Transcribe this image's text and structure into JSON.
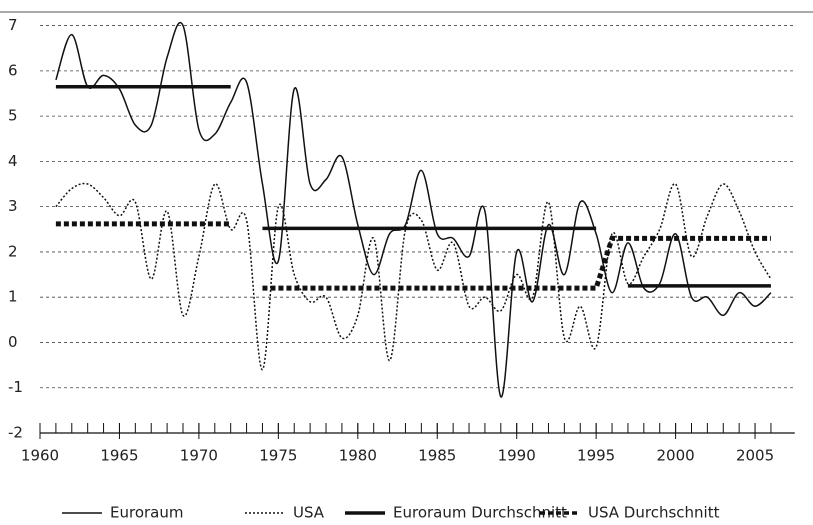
{
  "chart_data": {
    "type": "line",
    "x": [
      1961,
      1962,
      1963,
      1964,
      1965,
      1966,
      1967,
      1968,
      1969,
      1970,
      1971,
      1972,
      1973,
      1974,
      1975,
      1976,
      1977,
      1978,
      1979,
      1980,
      1981,
      1982,
      1983,
      1984,
      1985,
      1986,
      1987,
      1988,
      1989,
      1990,
      1991,
      1992,
      1993,
      1994,
      1995,
      1996,
      1997,
      1998,
      1999,
      2000,
      2001,
      2002,
      2003,
      2004,
      2005,
      2006
    ],
    "series": [
      {
        "name": "Euroraum",
        "color": "#111111",
        "style": "solid",
        "width": 1.5,
        "smooth": true,
        "values": [
          5.8,
          6.8,
          5.65,
          5.9,
          5.6,
          4.8,
          4.8,
          6.3,
          7.0,
          4.7,
          4.6,
          5.3,
          5.75,
          3.5,
          1.8,
          5.6,
          3.5,
          3.6,
          4.1,
          2.6,
          1.5,
          2.4,
          2.6,
          3.8,
          2.4,
          2.3,
          1.9,
          2.9,
          -1.2,
          2.0,
          0.9,
          2.6,
          1.5,
          3.1,
          2.4,
          1.1,
          2.2,
          1.2,
          1.3,
          2.4,
          1.0,
          1.0,
          0.6,
          1.1,
          0.8,
          1.1
        ]
      },
      {
        "name": "USA",
        "color": "#111111",
        "style": "dotted",
        "width": 1.5,
        "smooth": true,
        "values": [
          3.0,
          3.4,
          3.5,
          3.2,
          2.8,
          3.1,
          1.4,
          2.9,
          0.6,
          1.9,
          3.5,
          2.5,
          2.7,
          -0.6,
          3.0,
          1.5,
          0.9,
          1.0,
          0.1,
          0.6,
          2.3,
          -0.4,
          2.5,
          2.7,
          1.6,
          2.2,
          0.8,
          1.0,
          0.7,
          1.5,
          1.0,
          3.1,
          0.1,
          0.8,
          -0.1,
          2.4,
          1.3,
          1.9,
          2.5,
          3.5,
          1.9,
          2.8,
          3.5,
          2.9,
          2.0,
          1.4
        ]
      },
      {
        "name": "Euroraum Durchschnitt",
        "color": "#111111",
        "style": "solid",
        "width": 3.5,
        "smooth": false,
        "values": [
          5.65,
          5.65,
          5.65,
          5.65,
          5.65,
          5.65,
          5.65,
          5.65,
          5.65,
          5.65,
          5.65,
          5.65,
          null,
          2.52,
          2.52,
          2.52,
          2.52,
          2.52,
          2.52,
          2.52,
          2.52,
          2.52,
          2.52,
          2.52,
          2.52,
          2.52,
          2.52,
          2.52,
          2.52,
          2.52,
          2.52,
          2.52,
          2.52,
          2.52,
          2.52,
          null,
          1.25,
          1.25,
          1.25,
          1.25,
          1.25,
          1.25,
          1.25,
          1.25,
          1.25,
          1.25
        ]
      },
      {
        "name": "USA Durchschnitt",
        "color": "#111111",
        "style": "dashed",
        "width": 5,
        "smooth": false,
        "values": [
          2.62,
          2.62,
          2.62,
          2.62,
          2.62,
          2.62,
          2.62,
          2.62,
          2.62,
          2.62,
          2.62,
          2.62,
          null,
          1.2,
          1.2,
          1.2,
          1.2,
          1.2,
          1.2,
          1.2,
          1.2,
          1.2,
          1.2,
          1.2,
          1.2,
          1.2,
          1.2,
          1.2,
          1.2,
          1.2,
          1.2,
          1.2,
          1.2,
          1.2,
          1.2,
          2.3,
          2.3,
          2.3,
          2.3,
          2.3,
          2.3,
          2.3,
          2.3,
          2.3,
          2.3,
          2.3
        ]
      }
    ],
    "xlim": [
      1960,
      2007.5
    ],
    "xticks": [
      1960,
      1965,
      1970,
      1975,
      1980,
      1985,
      1990,
      1995,
      2000,
      2005
    ],
    "ylim": [
      -2,
      7.3
    ],
    "yticks": [
      -2,
      -1,
      0,
      1,
      2,
      3,
      4,
      5,
      6,
      7
    ],
    "grid": true,
    "legend": "bottom"
  }
}
